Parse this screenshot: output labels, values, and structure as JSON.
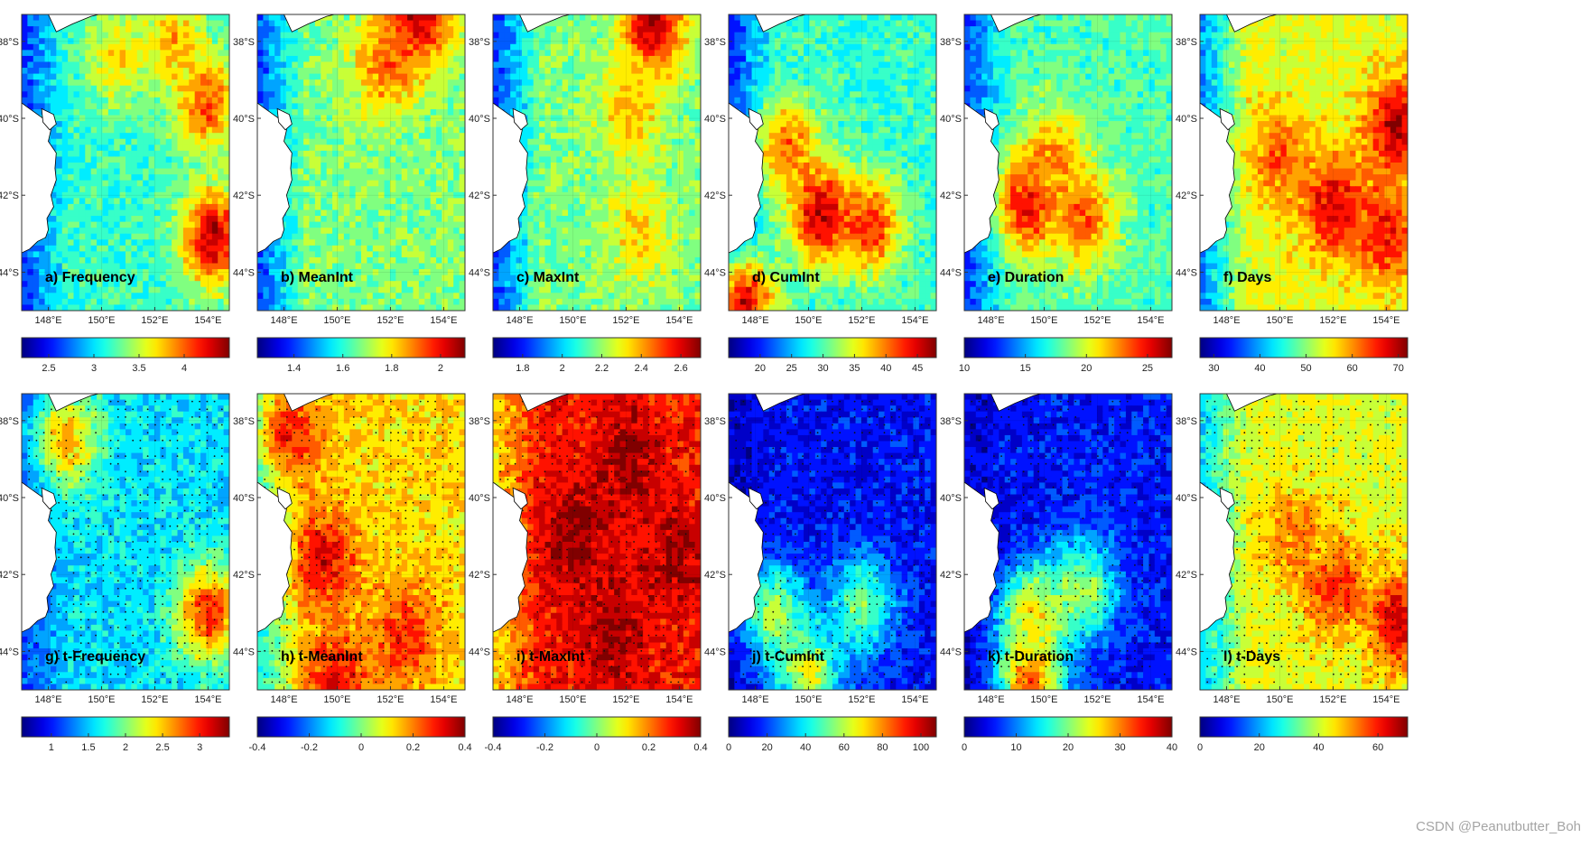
{
  "watermark": "CSDN @Peanutbutter_Boh",
  "chart_data": {
    "type": "heatmap",
    "colormap": "jet",
    "xlabel": "",
    "ylabel": "",
    "longitude_ticks": [
      "148°E",
      "150°E",
      "152°E",
      "154°E"
    ],
    "latitude_ticks": [
      "38°S",
      "40°S",
      "42°S",
      "44°S"
    ],
    "longitude_range": [
      147.0,
      154.8
    ],
    "latitude_range": [
      -45.0,
      -37.3
    ],
    "panels": [
      {
        "label": "a) Frequency",
        "colorbar_ticks": [
          "2.5",
          "3",
          "3.5",
          "4"
        ],
        "colorbar_range": [
          2.2,
          4.5
        ],
        "significance_dots": false,
        "hotspots": [
          {
            "lon": 154.2,
            "lat": -43.1,
            "level": 0.95
          },
          {
            "lon": 153.9,
            "lat": -39.6,
            "level": 0.8
          },
          {
            "lon": 152.7,
            "lat": -38.0,
            "level": 0.7
          },
          {
            "lon": 150.6,
            "lat": -38.4,
            "level": 0.65
          }
        ],
        "background_level": 0.42,
        "coast_level": 0.12
      },
      {
        "label": "b) MeanInt",
        "colorbar_ticks": [
          "1.4",
          "1.6",
          "1.8",
          "2"
        ],
        "colorbar_range": [
          1.25,
          2.1
        ],
        "significance_dots": false,
        "hotspots": [
          {
            "lon": 153.0,
            "lat": -37.4,
            "level": 0.98
          },
          {
            "lon": 151.8,
            "lat": -38.6,
            "level": 0.78
          }
        ],
        "background_level": 0.5,
        "coast_level": 0.1
      },
      {
        "label": "c) MaxInt",
        "colorbar_ticks": [
          "1.8",
          "2",
          "2.2",
          "2.4",
          "2.6"
        ],
        "colorbar_range": [
          1.65,
          2.7
        ],
        "significance_dots": false,
        "hotspots": [
          {
            "lon": 153.0,
            "lat": -37.6,
            "level": 0.95
          },
          {
            "lon": 152.2,
            "lat": -39.8,
            "level": 0.7
          },
          {
            "lon": 152.5,
            "lat": -43.0,
            "level": 0.66
          }
        ],
        "background_level": 0.5,
        "coast_level": 0.08
      },
      {
        "label": "d) CumInt",
        "colorbar_ticks": [
          "20",
          "25",
          "30",
          "35",
          "40",
          "45"
        ],
        "colorbar_range": [
          15.0,
          48.0
        ],
        "significance_dots": false,
        "hotspots": [
          {
            "lon": 150.5,
            "lat": -42.5,
            "level": 0.95
          },
          {
            "lon": 152.3,
            "lat": -42.8,
            "level": 0.85
          },
          {
            "lon": 149.2,
            "lat": -40.8,
            "level": 0.78
          },
          {
            "lon": 147.6,
            "lat": -44.8,
            "level": 0.9
          }
        ],
        "background_level": 0.42,
        "coast_level": 0.1
      },
      {
        "label": "e) Duration",
        "colorbar_ticks": [
          "10",
          "15",
          "20",
          "25"
        ],
        "colorbar_range": [
          10.0,
          27.0
        ],
        "significance_dots": false,
        "hotspots": [
          {
            "lon": 149.4,
            "lat": -42.2,
            "level": 0.9
          },
          {
            "lon": 151.5,
            "lat": -42.6,
            "level": 0.8
          },
          {
            "lon": 150.4,
            "lat": -41.0,
            "level": 0.72
          }
        ],
        "background_level": 0.45,
        "coast_level": 0.1
      },
      {
        "label": "f) Days",
        "colorbar_ticks": [
          "30",
          "40",
          "50",
          "60",
          "70"
        ],
        "colorbar_range": [
          27.0,
          72.0
        ],
        "significance_dots": false,
        "hotspots": [
          {
            "lon": 152.0,
            "lat": -42.3,
            "level": 0.92
          },
          {
            "lon": 154.4,
            "lat": -40.2,
            "level": 0.95
          },
          {
            "lon": 154.0,
            "lat": -43.0,
            "level": 0.88
          },
          {
            "lon": 150.0,
            "lat": -41.0,
            "level": 0.78
          }
        ],
        "background_level": 0.6,
        "coast_level": 0.15
      },
      {
        "label": "g) t-Frequency",
        "colorbar_ticks": [
          "1",
          "1.5",
          "2",
          "2.5",
          "3"
        ],
        "colorbar_range": [
          0.6,
          3.4
        ],
        "significance_dots": true,
        "hotspots": [
          {
            "lon": 154.0,
            "lat": -43.0,
            "level": 0.85
          },
          {
            "lon": 148.7,
            "lat": -38.5,
            "level": 0.7
          }
        ],
        "background_level": 0.35,
        "coast_level": 0.15
      },
      {
        "label": "h) t-MeanInt",
        "colorbar_ticks": [
          "-0.4",
          "-0.2",
          "0",
          "0.2",
          "0.4"
        ],
        "colorbar_range": [
          -0.4,
          0.4
        ],
        "significance_dots": true,
        "hotspots": [
          {
            "lon": 149.5,
            "lat": -41.6,
            "level": 0.9
          },
          {
            "lon": 148.2,
            "lat": -38.3,
            "level": 0.85
          },
          {
            "lon": 152.6,
            "lat": -43.6,
            "level": 0.85
          },
          {
            "lon": 150.0,
            "lat": -44.8,
            "level": 0.88
          }
        ],
        "background_level": 0.66,
        "coast_level": 0.3
      },
      {
        "label": "i) t-MaxInt",
        "colorbar_ticks": [
          "-0.4",
          "-0.2",
          "0",
          "0.2",
          "0.4"
        ],
        "colorbar_range": [
          -0.4,
          0.4
        ],
        "significance_dots": true,
        "hotspots": [
          {
            "lon": 150.0,
            "lat": -41.0,
            "level": 1.0
          },
          {
            "lon": 152.0,
            "lat": -39.0,
            "level": 0.98
          },
          {
            "lon": 153.8,
            "lat": -41.5,
            "level": 0.96
          },
          {
            "lon": 151.5,
            "lat": -43.5,
            "level": 0.98
          }
        ],
        "background_level": 0.86,
        "coast_level": 0.6
      },
      {
        "label": "j) t-CumInt",
        "colorbar_ticks": [
          "0",
          "20",
          "40",
          "60",
          "80",
          "100"
        ],
        "colorbar_range": [
          0.0,
          108.0
        ],
        "significance_dots": true,
        "hotspots": [
          {
            "lon": 148.7,
            "lat": -43.0,
            "level": 0.55
          },
          {
            "lon": 150.0,
            "lat": -44.6,
            "level": 0.6
          },
          {
            "lon": 152.0,
            "lat": -42.8,
            "level": 0.5
          }
        ],
        "background_level": 0.13,
        "coast_level": 0.05
      },
      {
        "label": "k) t-Duration",
        "colorbar_ticks": [
          "0",
          "10",
          "20",
          "30",
          "40"
        ],
        "colorbar_range": [
          0.0,
          40.0
        ],
        "significance_dots": true,
        "hotspots": [
          {
            "lon": 149.5,
            "lat": -44.7,
            "level": 0.8
          },
          {
            "lon": 151.5,
            "lat": -42.4,
            "level": 0.55
          },
          {
            "lon": 149.6,
            "lat": -43.0,
            "level": 0.65
          }
        ],
        "background_level": 0.14,
        "coast_level": 0.05
      },
      {
        "label": "l) t-Days",
        "colorbar_ticks": [
          "0",
          "20",
          "40",
          "60"
        ],
        "colorbar_range": [
          0.0,
          70.0
        ],
        "significance_dots": true,
        "hotspots": [
          {
            "lon": 152.0,
            "lat": -42.3,
            "level": 0.84
          },
          {
            "lon": 154.5,
            "lat": -43.2,
            "level": 0.92
          },
          {
            "lon": 150.5,
            "lat": -41.0,
            "level": 0.75
          }
        ],
        "background_level": 0.6,
        "coast_level": 0.25
      }
    ]
  }
}
